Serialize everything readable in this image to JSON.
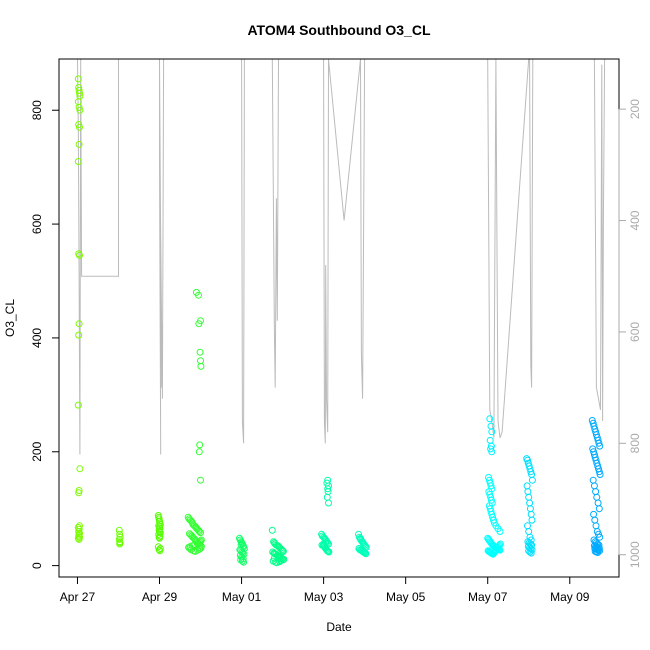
{
  "chart_data": {
    "type": "scatter",
    "title": "ATOM4 Southbound O3_CL",
    "xlabel": "Date",
    "ylabel": "O3_CL",
    "x_ticks": [
      "Apr 27",
      "Apr 29",
      "May 01",
      "May 03",
      "May 05",
      "May 07",
      "May 09"
    ],
    "x_tick_days": [
      0,
      2,
      4,
      6,
      8,
      10,
      12
    ],
    "xlim_days": [
      -0.45,
      13.2
    ],
    "ylim": [
      -20,
      890
    ],
    "y_ticks": [
      0,
      200,
      400,
      600,
      800
    ],
    "right_axis": {
      "ticks": [
        200,
        400,
        600,
        800,
        1000
      ],
      "reversed": true,
      "range": [
        110,
        1040
      ],
      "color": "#aaaaaa"
    },
    "grid": false,
    "legend": "none",
    "series": [
      {
        "color": "#7cfc00",
        "x": [
          0.02,
          0.03,
          0.04,
          0.05,
          0.06,
          0.02,
          0.04,
          0.06,
          0.03,
          0.05,
          0.04,
          0.02,
          0.03,
          0.05,
          0.04,
          0.03,
          0.02,
          0.06,
          0.04,
          0.03,
          0.05,
          0.02,
          0.04,
          0.03,
          0.05,
          0.04,
          0.03,
          0.05,
          0.02,
          0.04
        ],
        "y": [
          855,
          840,
          835,
          830,
          825,
          815,
          805,
          800,
          775,
          770,
          740,
          710,
          548,
          545,
          425,
          405,
          282,
          170,
          132,
          128,
          70,
          67,
          64,
          60,
          57,
          55,
          52,
          50,
          48,
          46
        ]
      },
      {
        "color": "#6aff00",
        "x": [
          1.02,
          1.03,
          1.04,
          1.02,
          1.03,
          1.04,
          1.03
        ],
        "y": [
          62,
          55,
          50,
          46,
          42,
          40,
          38
        ]
      },
      {
        "color": "#55ff00",
        "x": [
          1.97,
          1.98,
          1.99,
          2.0,
          2.01,
          2.02,
          1.98,
          2.0,
          2.01,
          1.99,
          2.0,
          2.02,
          1.98,
          2.01,
          1.99,
          2.0,
          1.97,
          2.02,
          1.99,
          2.01
        ],
        "y": [
          88,
          85,
          82,
          78,
          75,
          72,
          70,
          68,
          65,
          63,
          60,
          58,
          55,
          52,
          50,
          48,
          33,
          30,
          28,
          26
        ]
      },
      {
        "color": "#33ff33",
        "x": [
          2.7,
          2.72,
          2.75,
          2.78,
          2.8,
          2.82,
          2.85,
          2.88,
          2.9,
          2.92,
          2.95,
          2.97,
          3.0,
          2.73,
          2.76,
          2.79,
          2.81,
          2.84,
          2.86,
          2.89,
          2.91,
          2.94,
          2.96,
          2.99,
          3.02,
          2.71,
          2.74,
          2.77,
          2.83,
          2.87,
          2.93,
          2.98,
          3.01,
          2.74,
          2.8,
          2.86,
          2.92,
          2.98,
          3.0,
          3.02,
          2.9,
          2.95,
          3.0,
          2.96,
          2.99,
          3.0,
          3.01,
          2.98,
          2.97,
          3.0
        ],
        "y": [
          85,
          82,
          80,
          78,
          75,
          72,
          70,
          68,
          66,
          64,
          62,
          60,
          58,
          56,
          54,
          52,
          50,
          48,
          46,
          44,
          42,
          40,
          38,
          36,
          34,
          32,
          30,
          28,
          26,
          25,
          27,
          29,
          31,
          33,
          35,
          37,
          39,
          41,
          43,
          45,
          480,
          475,
          430,
          425,
          375,
          360,
          350,
          212,
          200,
          150
        ]
      },
      {
        "color": "#11ff66",
        "x": [
          3.95,
          3.97,
          3.99,
          4.0,
          4.02,
          4.04,
          4.05,
          4.07,
          3.96,
          3.98,
          4.01,
          4.03,
          4.06,
          3.97,
          4.0,
          4.04,
          3.98,
          4.02,
          4.05,
          3.99
        ],
        "y": [
          48,
          45,
          42,
          40,
          38,
          35,
          33,
          30,
          28,
          26,
          24,
          22,
          20,
          18,
          15,
          12,
          10,
          8,
          6,
          36
        ]
      },
      {
        "color": "#00ff88",
        "x": [
          4.75,
          4.78,
          4.8,
          4.82,
          4.85,
          4.88,
          4.9,
          4.92,
          4.95,
          4.98,
          5.0,
          5.02,
          4.76,
          4.79,
          4.81,
          4.84,
          4.87,
          4.89,
          4.91,
          4.94,
          4.97,
          4.99,
          5.01,
          4.77,
          4.83,
          4.86,
          4.93,
          4.96,
          5.03,
          4.8
        ],
        "y": [
          62,
          42,
          40,
          38,
          36,
          35,
          34,
          32,
          30,
          28,
          26,
          25,
          24,
          22,
          21,
          20,
          18,
          17,
          16,
          15,
          14,
          12,
          10,
          8,
          6,
          5,
          7,
          9,
          11,
          13
        ]
      },
      {
        "color": "#00ffaa",
        "x": [
          5.95,
          5.97,
          6.0,
          6.02,
          6.04,
          6.06,
          6.08,
          6.1,
          6.12,
          5.96,
          5.99,
          6.01,
          6.03,
          6.05,
          6.07,
          6.09,
          6.11,
          6.13,
          6.0,
          6.05,
          6.1,
          6.08,
          6.12,
          6.1,
          6.11,
          6.09,
          6.12
        ],
        "y": [
          55,
          52,
          50,
          48,
          46,
          44,
          42,
          40,
          38,
          36,
          35,
          34,
          32,
          30,
          28,
          26,
          25,
          24,
          38,
          40,
          150,
          145,
          140,
          135,
          130,
          120,
          110
        ]
      },
      {
        "color": "#00ffbb",
        "x": [
          6.85,
          6.87,
          6.9,
          6.92,
          6.94,
          6.96,
          6.98,
          7.0,
          7.02,
          7.04,
          6.86,
          6.88,
          6.91,
          6.93,
          6.95,
          6.97,
          6.99,
          7.01,
          7.03,
          6.9
        ],
        "y": [
          55,
          50,
          46,
          44,
          42,
          40,
          38,
          36,
          34,
          32,
          30,
          28,
          27,
          26,
          25,
          24,
          23,
          22,
          21,
          48
        ]
      },
      {
        "color": "#00ffff",
        "x": [
          10.0,
          10.02,
          10.04,
          10.06,
          10.08,
          10.1,
          10.12,
          10.14,
          10.16,
          10.18,
          10.2,
          10.22,
          10.24,
          10.26,
          10.28,
          10.3,
          10.01,
          10.03,
          10.05,
          10.07,
          10.09,
          10.11,
          10.13,
          10.15,
          10.17,
          10.19,
          10.21,
          10.23,
          10.25,
          10.27,
          10.29,
          10.31,
          10.02,
          10.04,
          10.06,
          10.08,
          10.1,
          10.03,
          10.05,
          10.07,
          10.09,
          10.11,
          10.04,
          10.06,
          10.08,
          10.1,
          10.12,
          10.14,
          10.16,
          10.2,
          10.25,
          10.3
        ],
        "y": [
          48,
          46,
          44,
          42,
          40,
          38,
          36,
          35,
          34,
          33,
          32,
          31,
          30,
          29,
          28,
          27,
          26,
          25,
          24,
          23,
          22,
          21,
          20,
          22,
          24,
          26,
          28,
          30,
          32,
          34,
          36,
          38,
          155,
          150,
          145,
          140,
          135,
          130,
          125,
          120,
          115,
          110,
          105,
          100,
          95,
          90,
          85,
          80,
          75,
          70,
          65,
          60
        ]
      },
      {
        "color": "#00f0ff",
        "x": [
          10.05,
          10.08,
          10.1,
          10.06,
          10.09,
          10.07,
          10.1
        ],
        "y": [
          258,
          245,
          235,
          220,
          210,
          205,
          200
        ]
      },
      {
        "color": "#00e0ff",
        "x": [
          10.95,
          10.97,
          10.99,
          11.01,
          11.03,
          11.05,
          11.07,
          11.09,
          10.96,
          10.98,
          11.0,
          11.02,
          11.04,
          11.06,
          11.08,
          10.97,
          11.0,
          11.03,
          11.06,
          10.98,
          11.01,
          11.04,
          11.07,
          10.99,
          11.02,
          11.05,
          11.08,
          11.0,
          11.03,
          11.06
        ],
        "y": [
          188,
          185,
          180,
          175,
          170,
          165,
          160,
          150,
          140,
          130,
          120,
          110,
          100,
          90,
          80,
          70,
          60,
          50,
          45,
          42,
          40,
          38,
          36,
          34,
          32,
          30,
          28,
          26,
          24,
          22
        ]
      },
      {
        "color": "#00aaff",
        "x": [
          12.55,
          12.57,
          12.59,
          12.61,
          12.63,
          12.65,
          12.67,
          12.69,
          12.71,
          12.73,
          12.56,
          12.58,
          12.6,
          12.62,
          12.64,
          12.66,
          12.68,
          12.7,
          12.72,
          12.74,
          12.57,
          12.6,
          12.63,
          12.66,
          12.69,
          12.72,
          12.58,
          12.61,
          12.64,
          12.67,
          12.7,
          12.73,
          12.59,
          12.62,
          12.65,
          12.68,
          12.71,
          12.6,
          12.63,
          12.66,
          12.69,
          12.72,
          12.61,
          12.64,
          12.67,
          12.7,
          12.73,
          12.62,
          12.65,
          12.68
        ],
        "y": [
          255,
          250,
          245,
          240,
          235,
          230,
          225,
          220,
          215,
          210,
          205,
          200,
          195,
          190,
          185,
          180,
          175,
          170,
          165,
          160,
          150,
          140,
          130,
          120,
          110,
          100,
          90,
          80,
          70,
          60,
          55,
          50,
          45,
          42,
          40,
          38,
          36,
          35,
          34,
          33,
          32,
          31,
          30,
          29,
          28,
          27,
          26,
          25,
          24,
          23
        ]
      }
    ],
    "line_series": {
      "color": "#bbbbbb",
      "axis": "right",
      "x": [
        0.0,
        0.02,
        0.04,
        0.06,
        0.08,
        0.1,
        1.0,
        1.0,
        2.0,
        2.0,
        2.03,
        2.0,
        2.05,
        2.02,
        2.07,
        2.1,
        4.0,
        4.02,
        4.05,
        4.07,
        4.75,
        4.8,
        4.82,
        4.85,
        4.87,
        4.9,
        5.0,
        6.0,
        6.02,
        6.04,
        6.05,
        6.07,
        6.1,
        6.12,
        6.5,
        6.9,
        6.92,
        6.95,
        7.0,
        10.0,
        10.05,
        10.1,
        10.15,
        10.2,
        10.25,
        10.3,
        10.35,
        11.0,
        11.02,
        11.05,
        11.07,
        11.1,
        12.6,
        12.65,
        12.7,
        12.75,
        12.78,
        12.8,
        12.82,
        12.85
      ],
      "y": [
        110,
        230,
        500,
        820,
        110,
        500,
        500,
        110,
        110,
        290,
        820,
        110,
        700,
        360,
        720,
        110,
        110,
        760,
        800,
        110,
        110,
        600,
        700,
        360,
        580,
        110,
        110,
        110,
        760,
        800,
        480,
        720,
        780,
        110,
        400,
        110,
        640,
        720,
        110,
        110,
        740,
        760,
        790,
        110,
        760,
        790,
        780,
        110,
        110,
        660,
        700,
        110,
        110,
        700,
        720,
        740,
        120,
        760,
        400,
        110
      ]
    }
  }
}
